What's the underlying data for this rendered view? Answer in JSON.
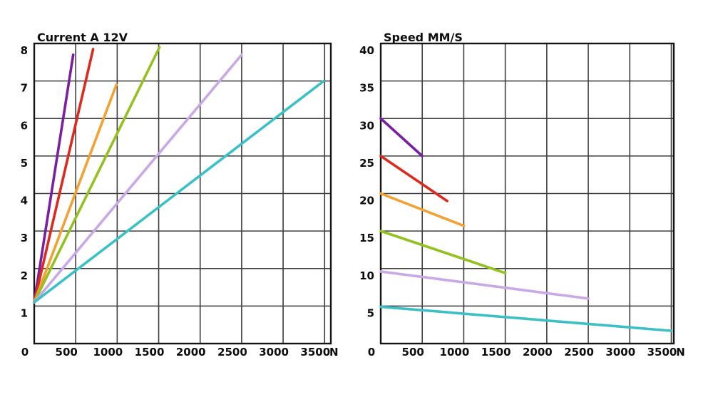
{
  "page": {
    "background": "#ffffff",
    "grid_color": "#3d3d3d",
    "border_color": "#141414",
    "text_color": "#0d0d0d"
  },
  "chart_data": [
    {
      "type": "line",
      "title": "Current A 12V",
      "xlabel": "N",
      "ylabel": "Current A",
      "xlim": [
        0,
        3575
      ],
      "ylim": [
        0,
        8
      ],
      "x_ticks": [
        0,
        500,
        1000,
        1500,
        2000,
        2500,
        3000,
        3500
      ],
      "y_ticks": [
        1,
        2,
        3,
        4,
        5,
        6,
        7,
        8
      ],
      "grid": true,
      "legend": false,
      "series": [
        {
          "name": "purple",
          "color": "#7A1FA2",
          "points": [
            [
              0,
              1.1
            ],
            [
              470,
              7.7
            ]
          ]
        },
        {
          "name": "red",
          "color": "#DB2B1E",
          "points": [
            [
              0,
              1.1
            ],
            [
              710,
              7.85
            ]
          ]
        },
        {
          "name": "orange",
          "color": "#F2A132",
          "points": [
            [
              0,
              1.1
            ],
            [
              990,
              6.9
            ]
          ]
        },
        {
          "name": "green",
          "color": "#94C11F",
          "points": [
            [
              0,
              1.1
            ],
            [
              1510,
              7.9
            ]
          ]
        },
        {
          "name": "lavender",
          "color": "#C9A8E6",
          "points": [
            [
              0,
              1.1
            ],
            [
              2500,
              7.7
            ]
          ]
        },
        {
          "name": "cyan",
          "color": "#3BC0C5",
          "points": [
            [
              0,
              1.1
            ],
            [
              3490,
              7.0
            ]
          ]
        }
      ]
    },
    {
      "type": "line",
      "title": "Speed MM/S",
      "xlabel": "N",
      "ylabel": "Speed MM/S",
      "xlim": [
        0,
        3530
      ],
      "ylim": [
        0,
        40
      ],
      "x_ticks": [
        0,
        500,
        1000,
        1500,
        2000,
        2500,
        3000,
        3500
      ],
      "y_ticks": [
        5,
        10,
        15,
        20,
        25,
        30,
        35,
        40
      ],
      "grid": true,
      "legend": false,
      "series": [
        {
          "name": "purple",
          "color": "#7A1FA2",
          "points": [
            [
              0,
              30
            ],
            [
              500,
              25
            ]
          ]
        },
        {
          "name": "red",
          "color": "#DB2B1E",
          "points": [
            [
              0,
              25
            ],
            [
              800,
              19
            ]
          ]
        },
        {
          "name": "orange",
          "color": "#F2A132",
          "points": [
            [
              0,
              20
            ],
            [
              1000,
              15.7
            ]
          ]
        },
        {
          "name": "green",
          "color": "#94C11F",
          "points": [
            [
              0,
              15
            ],
            [
              1500,
              9.4
            ]
          ]
        },
        {
          "name": "lavender",
          "color": "#C9A8E6",
          "points": [
            [
              0,
              9.6
            ],
            [
              2500,
              6.0
            ]
          ]
        },
        {
          "name": "cyan",
          "color": "#3BC0C5",
          "points": [
            [
              0,
              4.9
            ],
            [
              3500,
              1.7
            ]
          ]
        }
      ]
    }
  ]
}
